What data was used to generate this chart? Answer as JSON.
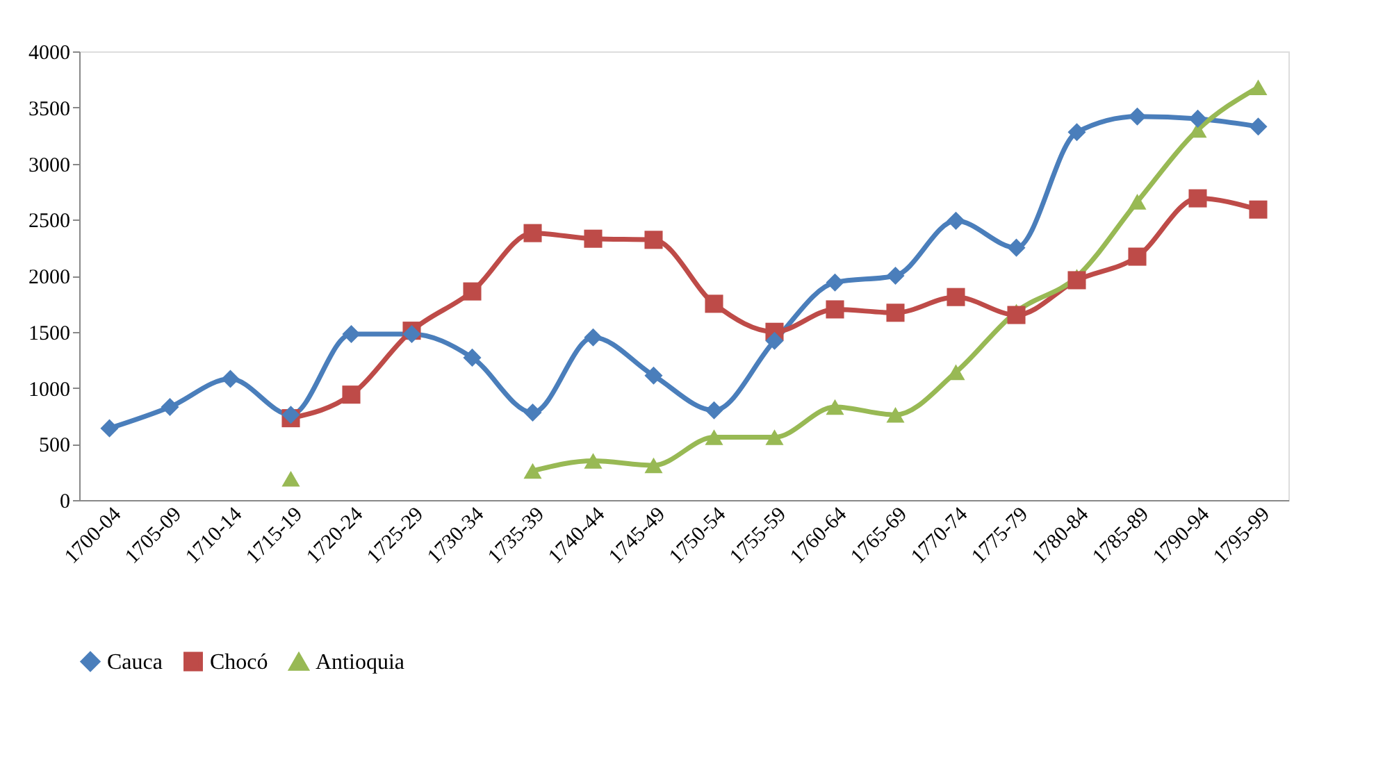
{
  "chart_data": {
    "type": "line",
    "categories": [
      "1700-04",
      "1705-09",
      "1710-14",
      "1715-19",
      "1720-24",
      "1725-29",
      "1730-34",
      "1735-39",
      "1740-44",
      "1745-49",
      "1750-54",
      "1755-59",
      "1760-64",
      "1765-69",
      "1770-74",
      "1775-79",
      "1780-84",
      "1785-89",
      "1790-94",
      "1795-99"
    ],
    "series": [
      {
        "name": "Cauca",
        "color": "#4a7ebb",
        "marker": "diamond",
        "values": [
          640,
          830,
          1080,
          760,
          1480,
          1480,
          1270,
          780,
          1450,
          1110,
          800,
          1420,
          1940,
          2000,
          2490,
          2250,
          3280,
          3420,
          3400,
          3330
        ]
      },
      {
        "name": "Chocó",
        "color": "#be4b48",
        "marker": "square",
        "values": [
          null,
          null,
          null,
          730,
          940,
          1510,
          1860,
          2380,
          2330,
          2320,
          1750,
          1500,
          1700,
          1670,
          1810,
          1650,
          1960,
          2170,
          2690,
          2590
        ]
      },
      {
        "name": "Antioquia",
        "color": "#98b954",
        "marker": "triangle",
        "values": [
          null,
          null,
          null,
          190,
          null,
          null,
          null,
          260,
          350,
          310,
          560,
          560,
          830,
          760,
          1140,
          1680,
          1990,
          2660,
          3300,
          3680
        ]
      }
    ],
    "ylim": [
      0,
      4000
    ],
    "yticks": [
      0,
      500,
      1000,
      1500,
      2000,
      2500,
      3000,
      3500,
      4000
    ],
    "grid": false,
    "legend": "bottom"
  }
}
